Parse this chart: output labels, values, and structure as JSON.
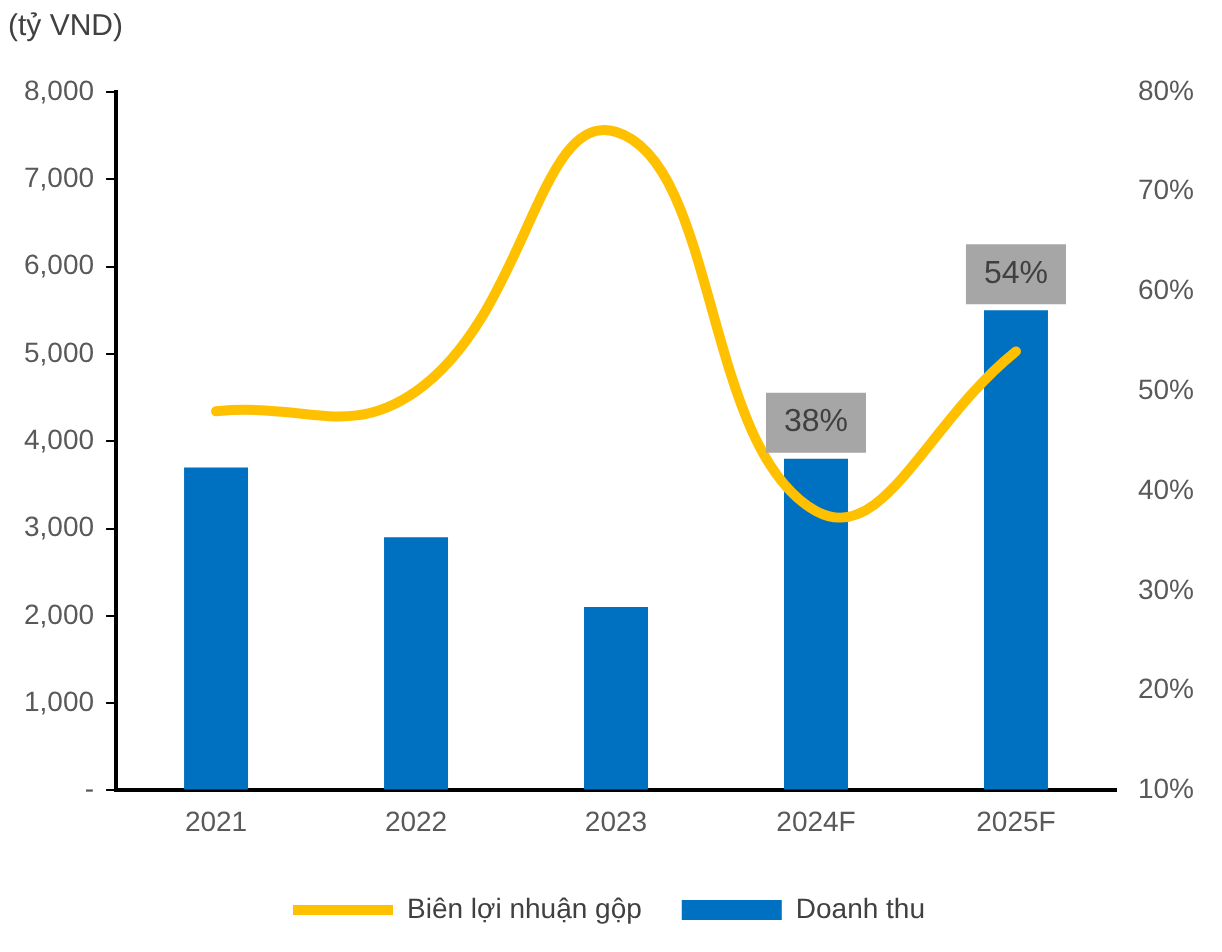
{
  "chart_data": {
    "type": "bar",
    "ylabel": "(tỷ VND)",
    "categories": [
      "2021",
      "2022",
      "2023",
      "2024F",
      "2025F"
    ],
    "series": [
      {
        "name": "Doanh thu",
        "color": "#0070c0",
        "values": [
          3700,
          2900,
          2100,
          3800,
          5500
        ]
      },
      {
        "name": "Biên lợi nhuận gộp",
        "type": "line",
        "axis": "y2",
        "color": "#ffc000",
        "values": [
          48,
          50,
          76,
          38,
          54
        ],
        "value_labels": [
          null,
          null,
          null,
          "38%",
          "54%"
        ]
      }
    ],
    "ylim": [
      0,
      8000
    ],
    "yticks": [
      {
        "value": 0,
        "label": "-"
      },
      {
        "value": 1000,
        "label": "1,000"
      },
      {
        "value": 2000,
        "label": "2,000"
      },
      {
        "value": 3000,
        "label": "3,000"
      },
      {
        "value": 4000,
        "label": "4,000"
      },
      {
        "value": 5000,
        "label": "5,000"
      },
      {
        "value": 6000,
        "label": "6,000"
      },
      {
        "value": 7000,
        "label": "7,000"
      },
      {
        "value": 8000,
        "label": "8,000"
      }
    ],
    "y2lim": [
      10,
      80
    ],
    "y2ticks": [
      {
        "value": 10,
        "label": "10%"
      },
      {
        "value": 20,
        "label": "20%"
      },
      {
        "value": 30,
        "label": "30%"
      },
      {
        "value": 40,
        "label": "40%"
      },
      {
        "value": 50,
        "label": "50%"
      },
      {
        "value": 60,
        "label": "60%"
      },
      {
        "value": 70,
        "label": "70%"
      },
      {
        "value": 80,
        "label": "80%"
      }
    ],
    "grid": false,
    "legend": "bottom",
    "marker": "none",
    "line_style": "solid"
  }
}
